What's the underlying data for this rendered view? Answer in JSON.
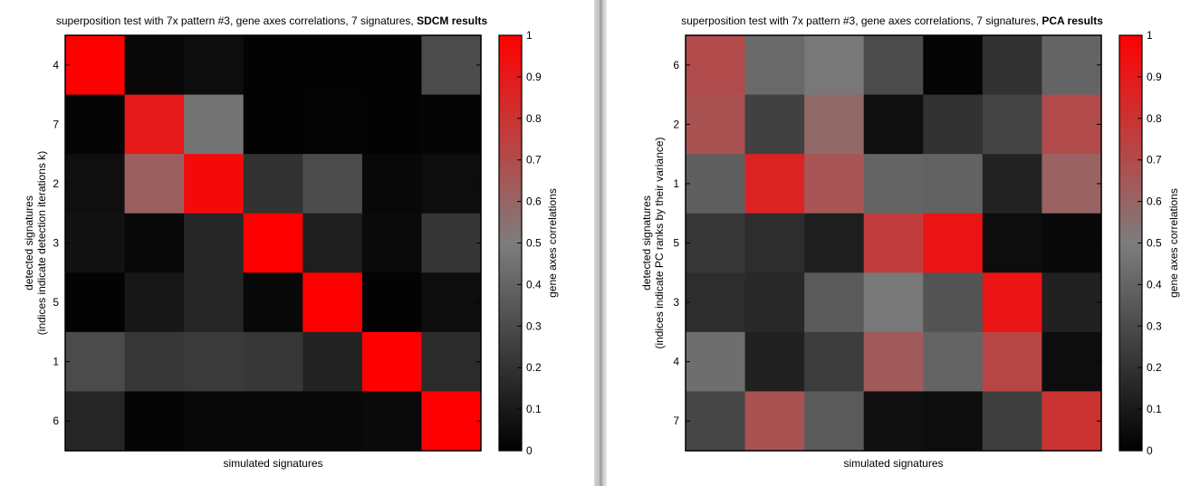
{
  "chart_data": [
    {
      "type": "heatmap",
      "title": "superposition test with 7x pattern #3, gene axes correlations, 7 signatures, ",
      "title_bold": "SDCM results",
      "xlabel": "simulated signatures",
      "ylabel_line1": "detected signatures",
      "ylabel_line2": "(indices indicate detection iterations k)",
      "row_labels": [
        "4",
        "7",
        "2",
        "3",
        "5",
        "1",
        "6"
      ],
      "values": [
        [
          1.0,
          0.03,
          0.05,
          0.01,
          0.01,
          0.01,
          0.3
        ],
        [
          0.02,
          0.9,
          0.46,
          0.01,
          0.02,
          0.01,
          0.02
        ],
        [
          0.06,
          0.62,
          0.96,
          0.2,
          0.3,
          0.03,
          0.05
        ],
        [
          0.07,
          0.03,
          0.15,
          1.0,
          0.12,
          0.04,
          0.21
        ],
        [
          0.01,
          0.09,
          0.15,
          0.03,
          1.0,
          0.01,
          0.05
        ],
        [
          0.3,
          0.22,
          0.23,
          0.22,
          0.14,
          1.0,
          0.17
        ],
        [
          0.15,
          0.02,
          0.03,
          0.03,
          0.03,
          0.04,
          1.0
        ]
      ],
      "colorbar_label": "gene axes correlations",
      "colorbar_ticks": [
        "0",
        "0.1",
        "0.2",
        "0.3",
        "0.4",
        "0.5",
        "0.6",
        "0.7",
        "0.8",
        "0.9",
        "1"
      ],
      "clim": [
        0,
        1
      ],
      "colormap": "black-gray-red"
    },
    {
      "type": "heatmap",
      "title": "superposition test with 7x pattern #3, gene axes correlations, 7 signatures, ",
      "title_bold": "PCA results",
      "xlabel": "simulated signatures",
      "ylabel_line1": "detected signatures",
      "ylabel_line2": "(indices indicate PC ranks by their variance)",
      "row_labels": [
        "6",
        "2",
        "1",
        "5",
        "3",
        "4",
        "7"
      ],
      "values": [
        [
          0.7,
          0.42,
          0.48,
          0.3,
          0.02,
          0.2,
          0.4
        ],
        [
          0.67,
          0.26,
          0.58,
          0.06,
          0.2,
          0.27,
          0.7
        ],
        [
          0.38,
          0.86,
          0.66,
          0.4,
          0.39,
          0.14,
          0.61
        ],
        [
          0.22,
          0.18,
          0.12,
          0.76,
          0.92,
          0.05,
          0.03
        ],
        [
          0.18,
          0.16,
          0.36,
          0.48,
          0.33,
          0.92,
          0.13
        ],
        [
          0.44,
          0.13,
          0.24,
          0.64,
          0.4,
          0.72,
          0.05
        ],
        [
          0.28,
          0.67,
          0.36,
          0.06,
          0.05,
          0.25,
          0.8
        ]
      ],
      "colorbar_label": "gene axes correlations",
      "colorbar_ticks": [
        "0",
        "0.1",
        "0.2",
        "0.3",
        "0.4",
        "0.5",
        "0.6",
        "0.7",
        "0.8",
        "0.9",
        "1"
      ],
      "clim": [
        0,
        1
      ],
      "colormap": "black-gray-red"
    }
  ]
}
